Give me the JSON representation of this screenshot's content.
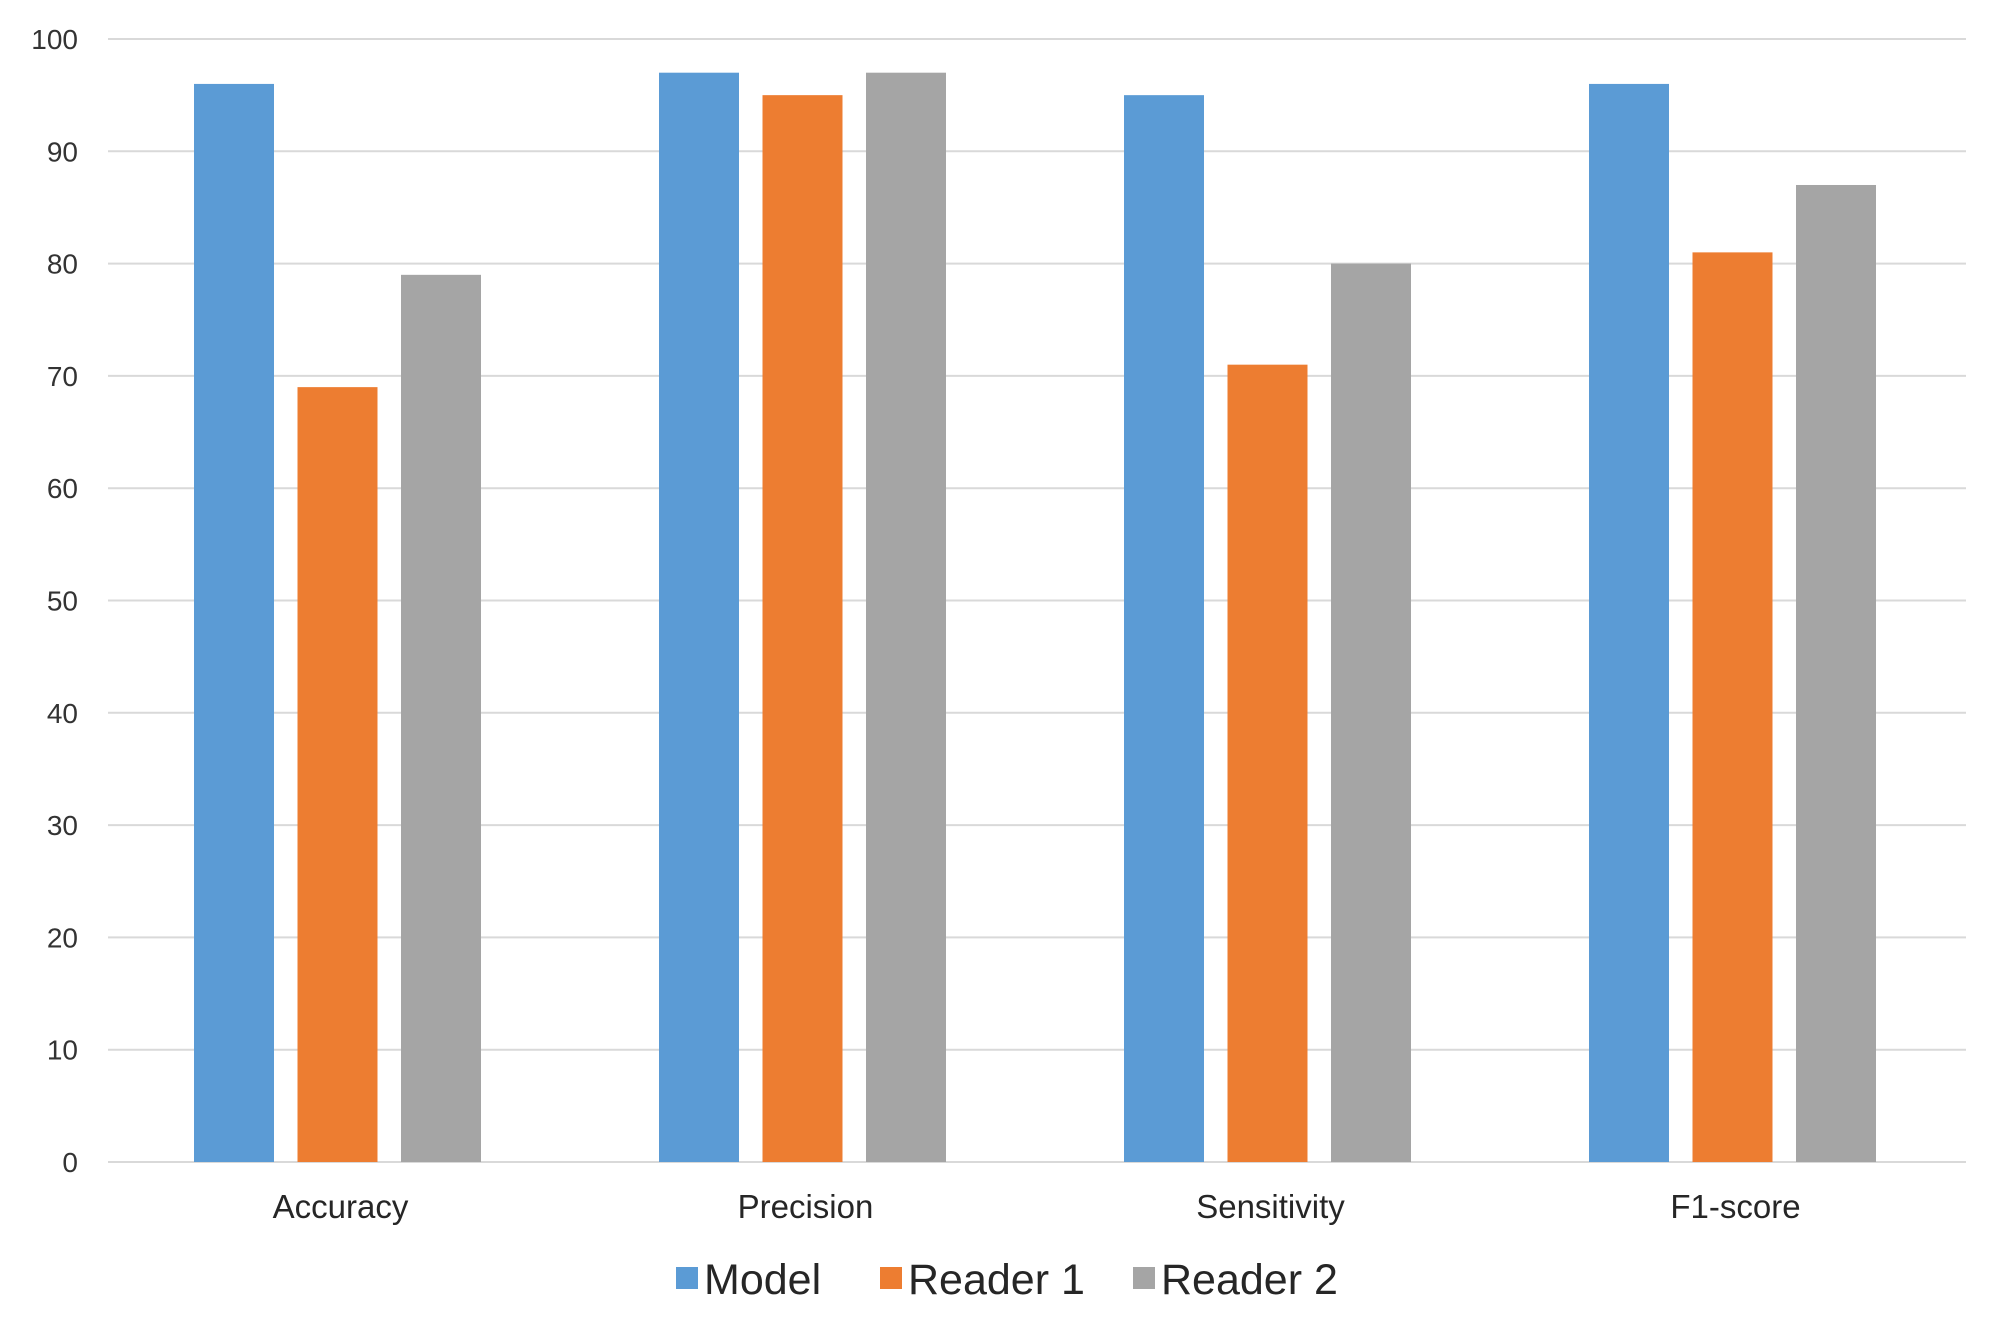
{
  "chart_data": {
    "type": "bar",
    "title": "",
    "xlabel": "",
    "ylabel": "",
    "categories": [
      "Accuracy",
      "Precision",
      "Sensitivity",
      "F1-score"
    ],
    "series": [
      {
        "name": "Model",
        "color": "#5b9bd5",
        "values": [
          96,
          97,
          95,
          96
        ]
      },
      {
        "name": "Reader 1",
        "color": "#ed7d31",
        "values": [
          69,
          95,
          71,
          81
        ]
      },
      {
        "name": "Reader 2",
        "color": "#a5a5a5",
        "values": [
          79,
          97,
          80,
          87
        ]
      }
    ],
    "ylim": [
      0,
      100
    ],
    "yticks": [
      0,
      10,
      20,
      30,
      40,
      50,
      60,
      70,
      80,
      90,
      100
    ],
    "grid": true,
    "legend": "bottom"
  }
}
